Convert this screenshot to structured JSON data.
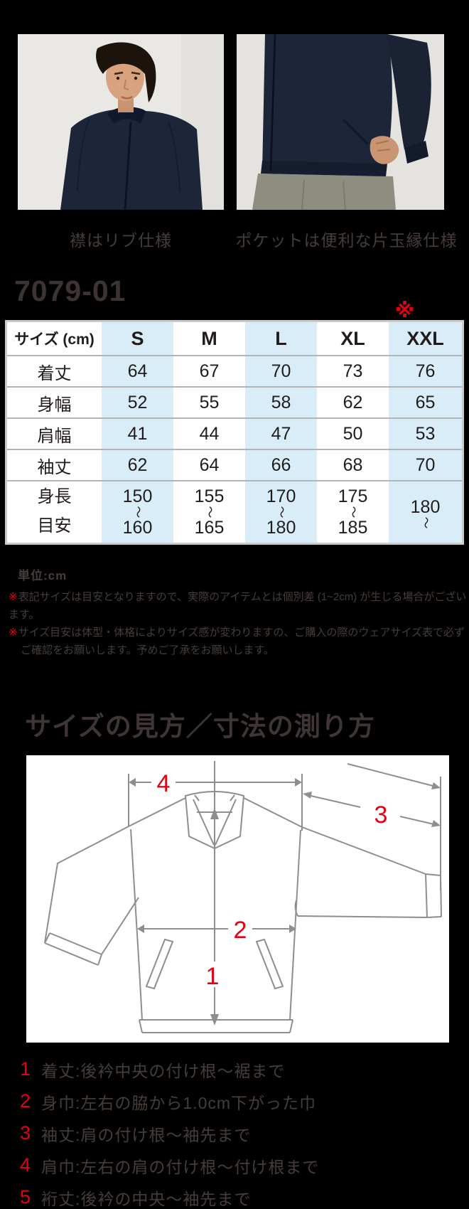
{
  "colors": {
    "background": "#000000",
    "accent_red": "#e60012",
    "body_text": "#463d3b",
    "table_blue": "#d9edf9",
    "table_border": "#c9caca",
    "diagram_line": "#8e8e8f",
    "jacket_navy": "#1d2539"
  },
  "photos": {
    "left": {
      "caption": "襟はリブ仕様"
    },
    "right": {
      "caption": "ポケットは便利な片玉縁仕様"
    }
  },
  "product_code": "7079-01",
  "table_note_mark": "※",
  "size_table": {
    "header": [
      "サイズ (cm)",
      "S",
      "M",
      "L",
      "XL",
      "XXL"
    ],
    "rows": [
      {
        "label": "着丈",
        "values": [
          "64",
          "67",
          "70",
          "73",
          "76"
        ]
      },
      {
        "label": "身幅",
        "values": [
          "52",
          "55",
          "58",
          "62",
          "65"
        ]
      },
      {
        "label": "肩幅",
        "values": [
          "41",
          "44",
          "47",
          "50",
          "53"
        ]
      },
      {
        "label": "袖丈",
        "values": [
          "62",
          "64",
          "66",
          "68",
          "70"
        ]
      },
      {
        "label": "身長目安",
        "label_line1": "身長",
        "label_line2": "目安",
        "values": [
          "150~160",
          "155~165",
          "170~180",
          "175~185",
          "180~"
        ]
      }
    ]
  },
  "notes": {
    "unit": "単位:cm",
    "items": [
      {
        "marker": "※",
        "text": "表記サイズは目安となりますので、実際のアイテムとは個別差 (1~2cm) が生じる場合がございます。"
      },
      {
        "marker": "※",
        "text": "サイズ目安は体型・体格によりサイズ感が変わりますの、ご購入の際のウェアサイズ表で必ず",
        "line2": "ご確認をお願いします。予めご了承をお願いします。"
      }
    ]
  },
  "measure_section": {
    "title": "サイズの見方／寸法の測り方",
    "diagram_labels": {
      "l1": "1",
      "l2": "2",
      "l3": "3",
      "l4": "4"
    },
    "legend": [
      {
        "num": "1",
        "text": "着丈:後衿中央の付け根〜裾まで"
      },
      {
        "num": "2",
        "text": "身巾:左右の脇から1.0cm下がった巾"
      },
      {
        "num": "3",
        "text": "袖丈:肩の付け根〜袖先まで"
      },
      {
        "num": "4",
        "text": "肩巾:左右の肩の付け根〜付け根まで"
      },
      {
        "num": "5",
        "text": "裄丈:後衿の中央〜袖先まで"
      }
    ]
  }
}
